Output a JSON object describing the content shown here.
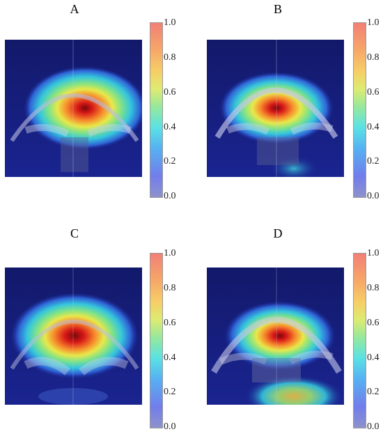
{
  "panels": [
    {
      "label": "A"
    },
    {
      "label": "B"
    },
    {
      "label": "C"
    },
    {
      "label": "D"
    }
  ],
  "colorbar": {
    "ticks": [
      "1.0",
      "0.8",
      "0.6",
      "0.4",
      "0.2",
      "0.0"
    ],
    "range": [
      0.0,
      1.0
    ]
  },
  "colors": {
    "background_blue": "#151c6b",
    "hot": "#cc1010",
    "warm": "#f58a30",
    "mid": "#e6e650",
    "cool": "#3ad0d0"
  }
}
